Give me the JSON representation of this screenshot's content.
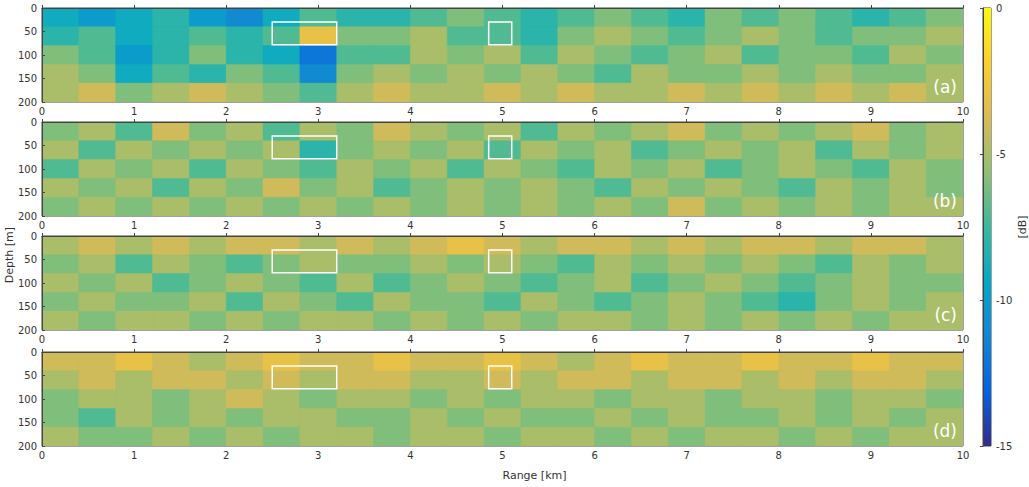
{
  "chart_data": {
    "type": "heatmap",
    "xlabel": "Range [km]",
    "ylabel": "Depth [m]",
    "colorbar": {
      "range": [
        -15,
        0
      ],
      "ticks": [
        -15,
        -10,
        -5,
        0
      ],
      "label": "[dB]"
    },
    "panels": [
      {
        "label": "(a)",
        "xlim": [
          0,
          10
        ],
        "xticks": [
          0,
          1,
          2,
          3,
          4,
          5,
          6,
          7,
          8,
          9,
          10
        ],
        "ylim": [
          0,
          200
        ],
        "yticks": [
          0,
          50,
          100,
          150,
          200
        ],
        "boxes": [
          {
            "x": [
              2.5,
              3.2
            ],
            "y": [
              30,
              78
            ]
          },
          {
            "x": [
              4.85,
              5.1
            ],
            "y": [
              30,
              78
            ]
          }
        ],
        "cells": [
          [
            -9,
            -10,
            -9,
            -8,
            -10,
            -11,
            -9,
            -7,
            -8,
            -8,
            -7,
            -6,
            -7,
            -8,
            -7,
            -6,
            -7,
            -8,
            -6,
            -7,
            -6,
            -7,
            -8,
            -7,
            -6
          ],
          [
            -8,
            -7,
            -9,
            -8,
            -7,
            -8,
            -7,
            -3,
            -6,
            -6,
            -5,
            -7,
            -7,
            -8,
            -6,
            -5,
            -6,
            -7,
            -6,
            -5,
            -6,
            -7,
            -6,
            -6,
            -5
          ],
          [
            -6,
            -7,
            -10,
            -8,
            -6,
            -8,
            -9,
            -12,
            -7,
            -7,
            -5,
            -6,
            -5,
            -7,
            -5,
            -6,
            -7,
            -6,
            -5,
            -7,
            -6,
            -6,
            -7,
            -5,
            -6
          ],
          [
            -5,
            -6,
            -9,
            -7,
            -8,
            -6,
            -7,
            -11,
            -6,
            -5,
            -6,
            -5,
            -6,
            -5,
            -6,
            -7,
            -5,
            -6,
            -6,
            -5,
            -6,
            -5,
            -6,
            -6,
            -5
          ],
          [
            -5,
            -4,
            -6,
            -5,
            -4,
            -5,
            -6,
            -7,
            -5,
            -4,
            -5,
            -5,
            -4,
            -5,
            -4,
            -5,
            -5,
            -4,
            -5,
            -4,
            -5,
            -4,
            -5,
            -4,
            -5
          ]
        ]
      },
      {
        "label": "(b)",
        "xlim": [
          0,
          10
        ],
        "xticks": [
          0,
          1,
          2,
          3,
          4,
          5,
          6,
          7,
          8,
          9,
          10
        ],
        "ylim": [
          0,
          200
        ],
        "yticks": [
          0,
          50,
          100,
          150,
          200
        ],
        "boxes": [
          {
            "x": [
              2.5,
              3.2
            ],
            "y": [
              30,
              78
            ]
          },
          {
            "x": [
              4.85,
              5.1
            ],
            "y": [
              30,
              78
            ]
          }
        ],
        "cells": [
          [
            -6,
            -5,
            -7,
            -4,
            -6,
            -5,
            -7,
            -5,
            -6,
            -4,
            -5,
            -6,
            -5,
            -7,
            -5,
            -6,
            -5,
            -4,
            -6,
            -5,
            -6,
            -5,
            -4,
            -6,
            -5
          ],
          [
            -5,
            -7,
            -5,
            -6,
            -5,
            -6,
            -5,
            -8,
            -6,
            -5,
            -6,
            -5,
            -7,
            -5,
            -6,
            -5,
            -7,
            -6,
            -5,
            -6,
            -5,
            -7,
            -5,
            -6,
            -5
          ],
          [
            -7,
            -5,
            -6,
            -5,
            -7,
            -5,
            -6,
            -7,
            -5,
            -6,
            -5,
            -7,
            -5,
            -6,
            -7,
            -5,
            -6,
            -5,
            -7,
            -6,
            -5,
            -6,
            -7,
            -5,
            -6
          ],
          [
            -5,
            -6,
            -5,
            -7,
            -5,
            -6,
            -4,
            -6,
            -5,
            -7,
            -6,
            -5,
            -6,
            -5,
            -6,
            -7,
            -5,
            -6,
            -5,
            -6,
            -7,
            -5,
            -6,
            -5,
            -6
          ],
          [
            -6,
            -5,
            -6,
            -5,
            -6,
            -5,
            -6,
            -5,
            -6,
            -5,
            -6,
            -5,
            -6,
            -5,
            -6,
            -5,
            -6,
            -4,
            -6,
            -5,
            -6,
            -5,
            -6,
            -5,
            -5
          ]
        ]
      },
      {
        "label": "(c)",
        "xlim": [
          0,
          10
        ],
        "xticks": [
          0,
          1,
          2,
          3,
          4,
          5,
          6,
          7,
          8,
          9,
          10
        ],
        "ylim": [
          0,
          200
        ],
        "yticks": [
          0,
          50,
          100,
          150,
          200
        ],
        "boxes": [
          {
            "x": [
              2.5,
              3.2
            ],
            "y": [
              30,
              78
            ]
          },
          {
            "x": [
              4.85,
              5.1
            ],
            "y": [
              30,
              78
            ]
          }
        ],
        "cells": [
          [
            -5,
            -4,
            -5,
            -4,
            -5,
            -4,
            -4,
            -5,
            -4,
            -5,
            -4,
            -3,
            -4,
            -5,
            -4,
            -4,
            -5,
            -4,
            -5,
            -4,
            -4,
            -5,
            -4,
            -4,
            -5
          ],
          [
            -6,
            -5,
            -7,
            -5,
            -6,
            -7,
            -6,
            -5,
            -6,
            -6,
            -5,
            -6,
            -5,
            -6,
            -7,
            -5,
            -6,
            -5,
            -6,
            -5,
            -6,
            -7,
            -5,
            -6,
            -5
          ],
          [
            -5,
            -6,
            -5,
            -7,
            -6,
            -5,
            -6,
            -7,
            -5,
            -7,
            -6,
            -5,
            -6,
            -7,
            -6,
            -5,
            -7,
            -6,
            -5,
            -6,
            -7,
            -6,
            -5,
            -6,
            -6
          ],
          [
            -6,
            -5,
            -6,
            -6,
            -5,
            -7,
            -5,
            -6,
            -7,
            -5,
            -6,
            -6,
            -7,
            -5,
            -6,
            -7,
            -6,
            -5,
            -6,
            -7,
            -8,
            -6,
            -5,
            -6,
            -5
          ],
          [
            -5,
            -6,
            -5,
            -5,
            -6,
            -5,
            -6,
            -5,
            -5,
            -6,
            -5,
            -6,
            -5,
            -6,
            -5,
            -5,
            -6,
            -5,
            -6,
            -5,
            -6,
            -5,
            -6,
            -5,
            -5
          ]
        ]
      },
      {
        "label": "(d)",
        "xlim": [
          0,
          10
        ],
        "xticks": [
          0,
          1,
          2,
          3,
          4,
          5,
          6,
          7,
          8,
          9,
          10
        ],
        "ylim": [
          0,
          200
        ],
        "yticks": [
          0,
          50,
          100,
          150,
          200
        ],
        "boxes": [
          {
            "x": [
              2.5,
              3.2
            ],
            "y": [
              30,
              78
            ]
          },
          {
            "x": [
              4.85,
              5.1
            ],
            "y": [
              30,
              78
            ]
          }
        ],
        "cells": [
          [
            -4,
            -4,
            -3,
            -4,
            -5,
            -4,
            -3,
            -4,
            -4,
            -3,
            -4,
            -4,
            -3,
            -4,
            -5,
            -4,
            -3,
            -4,
            -4,
            -3,
            -4,
            -4,
            -3,
            -4,
            -4
          ],
          [
            -5,
            -4,
            -5,
            -4,
            -4,
            -5,
            -4,
            -5,
            -4,
            -4,
            -5,
            -5,
            -4,
            -5,
            -4,
            -4,
            -5,
            -4,
            -4,
            -5,
            -4,
            -5,
            -4,
            -4,
            -5
          ],
          [
            -6,
            -5,
            -5,
            -6,
            -5,
            -4,
            -5,
            -6,
            -5,
            -5,
            -6,
            -5,
            -6,
            -5,
            -5,
            -6,
            -5,
            -5,
            -6,
            -5,
            -5,
            -6,
            -5,
            -5,
            -6
          ],
          [
            -6,
            -7,
            -5,
            -6,
            -5,
            -6,
            -5,
            -5,
            -6,
            -6,
            -5,
            -6,
            -5,
            -6,
            -6,
            -5,
            -6,
            -5,
            -6,
            -6,
            -5,
            -6,
            -5,
            -6,
            -5
          ],
          [
            -5,
            -6,
            -6,
            -5,
            -6,
            -5,
            -6,
            -5,
            -5,
            -6,
            -5,
            -5,
            -6,
            -5,
            -5,
            -6,
            -5,
            -6,
            -5,
            -5,
            -6,
            -5,
            -6,
            -5,
            -5
          ]
        ]
      }
    ]
  }
}
